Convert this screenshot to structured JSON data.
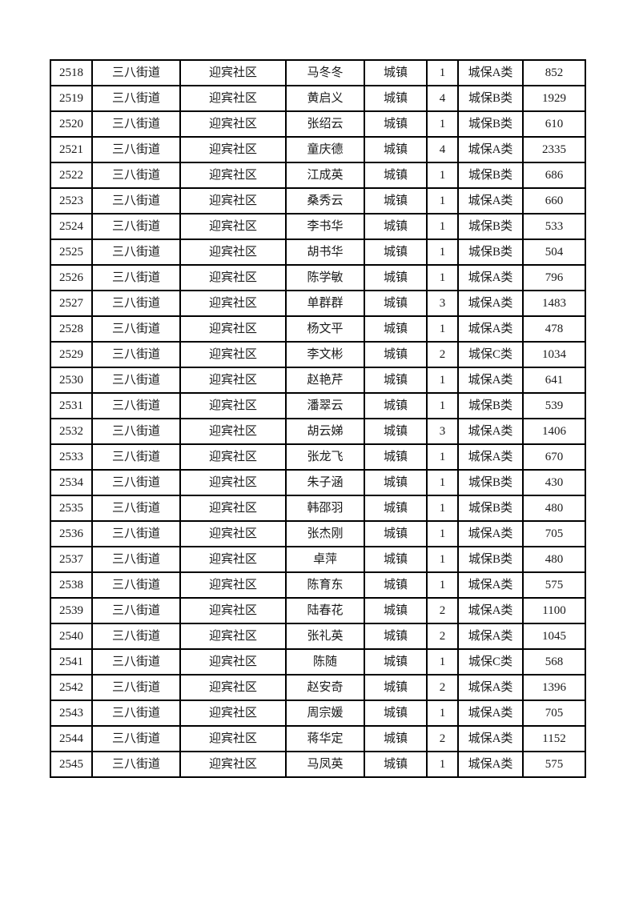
{
  "table": {
    "column_keys": [
      "serial",
      "street",
      "community",
      "name",
      "residence_type",
      "count",
      "category",
      "amount"
    ],
    "rows": [
      [
        "2518",
        "三八街道",
        "迎宾社区",
        "马冬冬",
        "城镇",
        "1",
        "城保A类",
        "852"
      ],
      [
        "2519",
        "三八街道",
        "迎宾社区",
        "黄启义",
        "城镇",
        "4",
        "城保B类",
        "1929"
      ],
      [
        "2520",
        "三八街道",
        "迎宾社区",
        "张绍云",
        "城镇",
        "1",
        "城保B类",
        "610"
      ],
      [
        "2521",
        "三八街道",
        "迎宾社区",
        "童庆德",
        "城镇",
        "4",
        "城保A类",
        "2335"
      ],
      [
        "2522",
        "三八街道",
        "迎宾社区",
        "江成英",
        "城镇",
        "1",
        "城保B类",
        "686"
      ],
      [
        "2523",
        "三八街道",
        "迎宾社区",
        "桑秀云",
        "城镇",
        "1",
        "城保A类",
        "660"
      ],
      [
        "2524",
        "三八街道",
        "迎宾社区",
        "李书华",
        "城镇",
        "1",
        "城保B类",
        "533"
      ],
      [
        "2525",
        "三八街道",
        "迎宾社区",
        "胡书华",
        "城镇",
        "1",
        "城保B类",
        "504"
      ],
      [
        "2526",
        "三八街道",
        "迎宾社区",
        "陈学敏",
        "城镇",
        "1",
        "城保A类",
        "796"
      ],
      [
        "2527",
        "三八街道",
        "迎宾社区",
        "单群群",
        "城镇",
        "3",
        "城保A类",
        "1483"
      ],
      [
        "2528",
        "三八街道",
        "迎宾社区",
        "杨文平",
        "城镇",
        "1",
        "城保A类",
        "478"
      ],
      [
        "2529",
        "三八街道",
        "迎宾社区",
        "李文彬",
        "城镇",
        "2",
        "城保C类",
        "1034"
      ],
      [
        "2530",
        "三八街道",
        "迎宾社区",
        "赵艳芹",
        "城镇",
        "1",
        "城保A类",
        "641"
      ],
      [
        "2531",
        "三八街道",
        "迎宾社区",
        "潘翠云",
        "城镇",
        "1",
        "城保B类",
        "539"
      ],
      [
        "2532",
        "三八街道",
        "迎宾社区",
        "胡云娣",
        "城镇",
        "3",
        "城保A类",
        "1406"
      ],
      [
        "2533",
        "三八街道",
        "迎宾社区",
        "张龙飞",
        "城镇",
        "1",
        "城保A类",
        "670"
      ],
      [
        "2534",
        "三八街道",
        "迎宾社区",
        "朱子涵",
        "城镇",
        "1",
        "城保B类",
        "430"
      ],
      [
        "2535",
        "三八街道",
        "迎宾社区",
        "韩邵羽",
        "城镇",
        "1",
        "城保B类",
        "480"
      ],
      [
        "2536",
        "三八街道",
        "迎宾社区",
        "张杰刚",
        "城镇",
        "1",
        "城保A类",
        "705"
      ],
      [
        "2537",
        "三八街道",
        "迎宾社区",
        "卓萍",
        "城镇",
        "1",
        "城保B类",
        "480"
      ],
      [
        "2538",
        "三八街道",
        "迎宾社区",
        "陈育东",
        "城镇",
        "1",
        "城保A类",
        "575"
      ],
      [
        "2539",
        "三八街道",
        "迎宾社区",
        "陆春花",
        "城镇",
        "2",
        "城保A类",
        "1100"
      ],
      [
        "2540",
        "三八街道",
        "迎宾社区",
        "张礼英",
        "城镇",
        "2",
        "城保A类",
        "1045"
      ],
      [
        "2541",
        "三八街道",
        "迎宾社区",
        "陈随",
        "城镇",
        "1",
        "城保C类",
        "568"
      ],
      [
        "2542",
        "三八街道",
        "迎宾社区",
        "赵安奇",
        "城镇",
        "2",
        "城保A类",
        "1396"
      ],
      [
        "2543",
        "三八街道",
        "迎宾社区",
        "周宗媛",
        "城镇",
        "1",
        "城保A类",
        "705"
      ],
      [
        "2544",
        "三八街道",
        "迎宾社区",
        "蒋华定",
        "城镇",
        "2",
        "城保A类",
        "1152"
      ],
      [
        "2545",
        "三八街道",
        "迎宾社区",
        "马凤英",
        "城镇",
        "1",
        "城保A类",
        "575"
      ]
    ]
  }
}
